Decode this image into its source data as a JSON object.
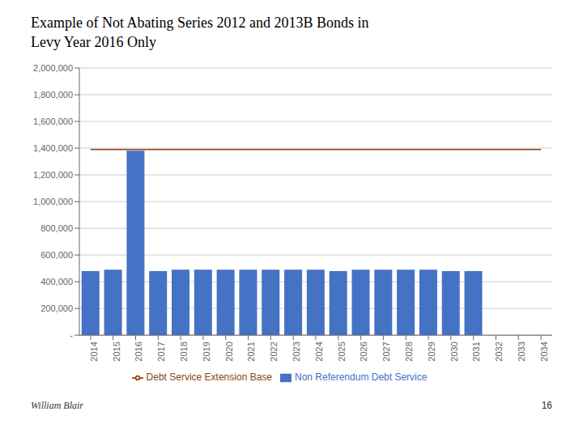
{
  "chart_data": {
    "type": "bar",
    "title": "Example of Not Abating Series 2012 and 2013B Bonds in",
    "subtitle": "Levy Year 2016 Only",
    "categories": [
      "2014",
      "2015",
      "2016",
      "2017",
      "2018",
      "2019",
      "2020",
      "2021",
      "2022",
      "2023",
      "2024",
      "2025",
      "2026",
      "2027",
      "2028",
      "2029",
      "2030",
      "2031",
      "2032",
      "2033",
      "2034"
    ],
    "series": [
      {
        "name": "Non Referendum Debt Service",
        "type": "bar",
        "color": "#4472C4",
        "values": [
          480000,
          490000,
          1380000,
          480000,
          490000,
          490000,
          490000,
          490000,
          490000,
          490000,
          490000,
          480000,
          490000,
          490000,
          490000,
          490000,
          480000,
          480000,
          0,
          0,
          0
        ]
      },
      {
        "name": "Debt Service Extension Base",
        "type": "line",
        "color": "#8B4513",
        "values": [
          1390000,
          1390000,
          1390000,
          1390000,
          1390000,
          1390000,
          1390000,
          1390000,
          1390000,
          1390000,
          1390000,
          1390000,
          1390000,
          1390000,
          1390000,
          1390000,
          1390000,
          1390000,
          1390000,
          1390000,
          1390000
        ]
      }
    ],
    "ylim": [
      0,
      2000000
    ],
    "yticks": [
      {
        "value": 0,
        "label": "-"
      },
      {
        "value": 200000,
        "label": "200,000"
      },
      {
        "value": 400000,
        "label": "400,000"
      },
      {
        "value": 600000,
        "label": "600,000"
      },
      {
        "value": 800000,
        "label": "800,000"
      },
      {
        "value": 1000000,
        "label": "1,000,000"
      },
      {
        "value": 1200000,
        "label": "1,200,000"
      },
      {
        "value": 1400000,
        "label": "1,400,000"
      },
      {
        "value": 1600000,
        "label": "1,600,000"
      },
      {
        "value": 1800000,
        "label": "1,800,000"
      },
      {
        "value": 2000000,
        "label": "2,000,000"
      }
    ],
    "grid": true,
    "legend": "bottom",
    "annotations": [
      "William Blair",
      "16"
    ]
  }
}
